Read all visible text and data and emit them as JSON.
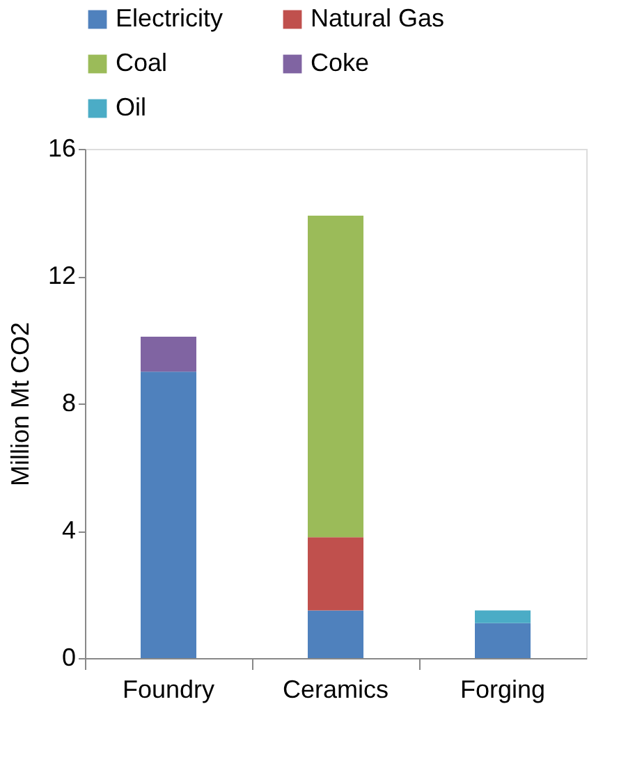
{
  "chart_data": {
    "type": "bar",
    "stacked": true,
    "ylabel": "Million Mt CO2",
    "categories": [
      "Foundry",
      "Ceramics",
      "Forging"
    ],
    "series": [
      {
        "name": "Electricity",
        "color": "#4f81bd",
        "values": [
          9.0,
          1.5,
          1.1
        ]
      },
      {
        "name": "Natural Gas",
        "color": "#c0504d",
        "values": [
          null,
          2.3,
          null
        ]
      },
      {
        "name": "Coal",
        "color": "#9bbb59",
        "values": [
          null,
          10.1,
          null
        ]
      },
      {
        "name": "Coke",
        "color": "#8064a2",
        "values": [
          1.1,
          null,
          null
        ]
      },
      {
        "name": "Oil",
        "color": "#4bacc6",
        "values": [
          null,
          null,
          0.4
        ]
      }
    ],
    "ylim": [
      0,
      16
    ],
    "yticks": [
      0,
      4,
      8,
      12,
      16
    ],
    "grid": false,
    "legend": "top"
  }
}
